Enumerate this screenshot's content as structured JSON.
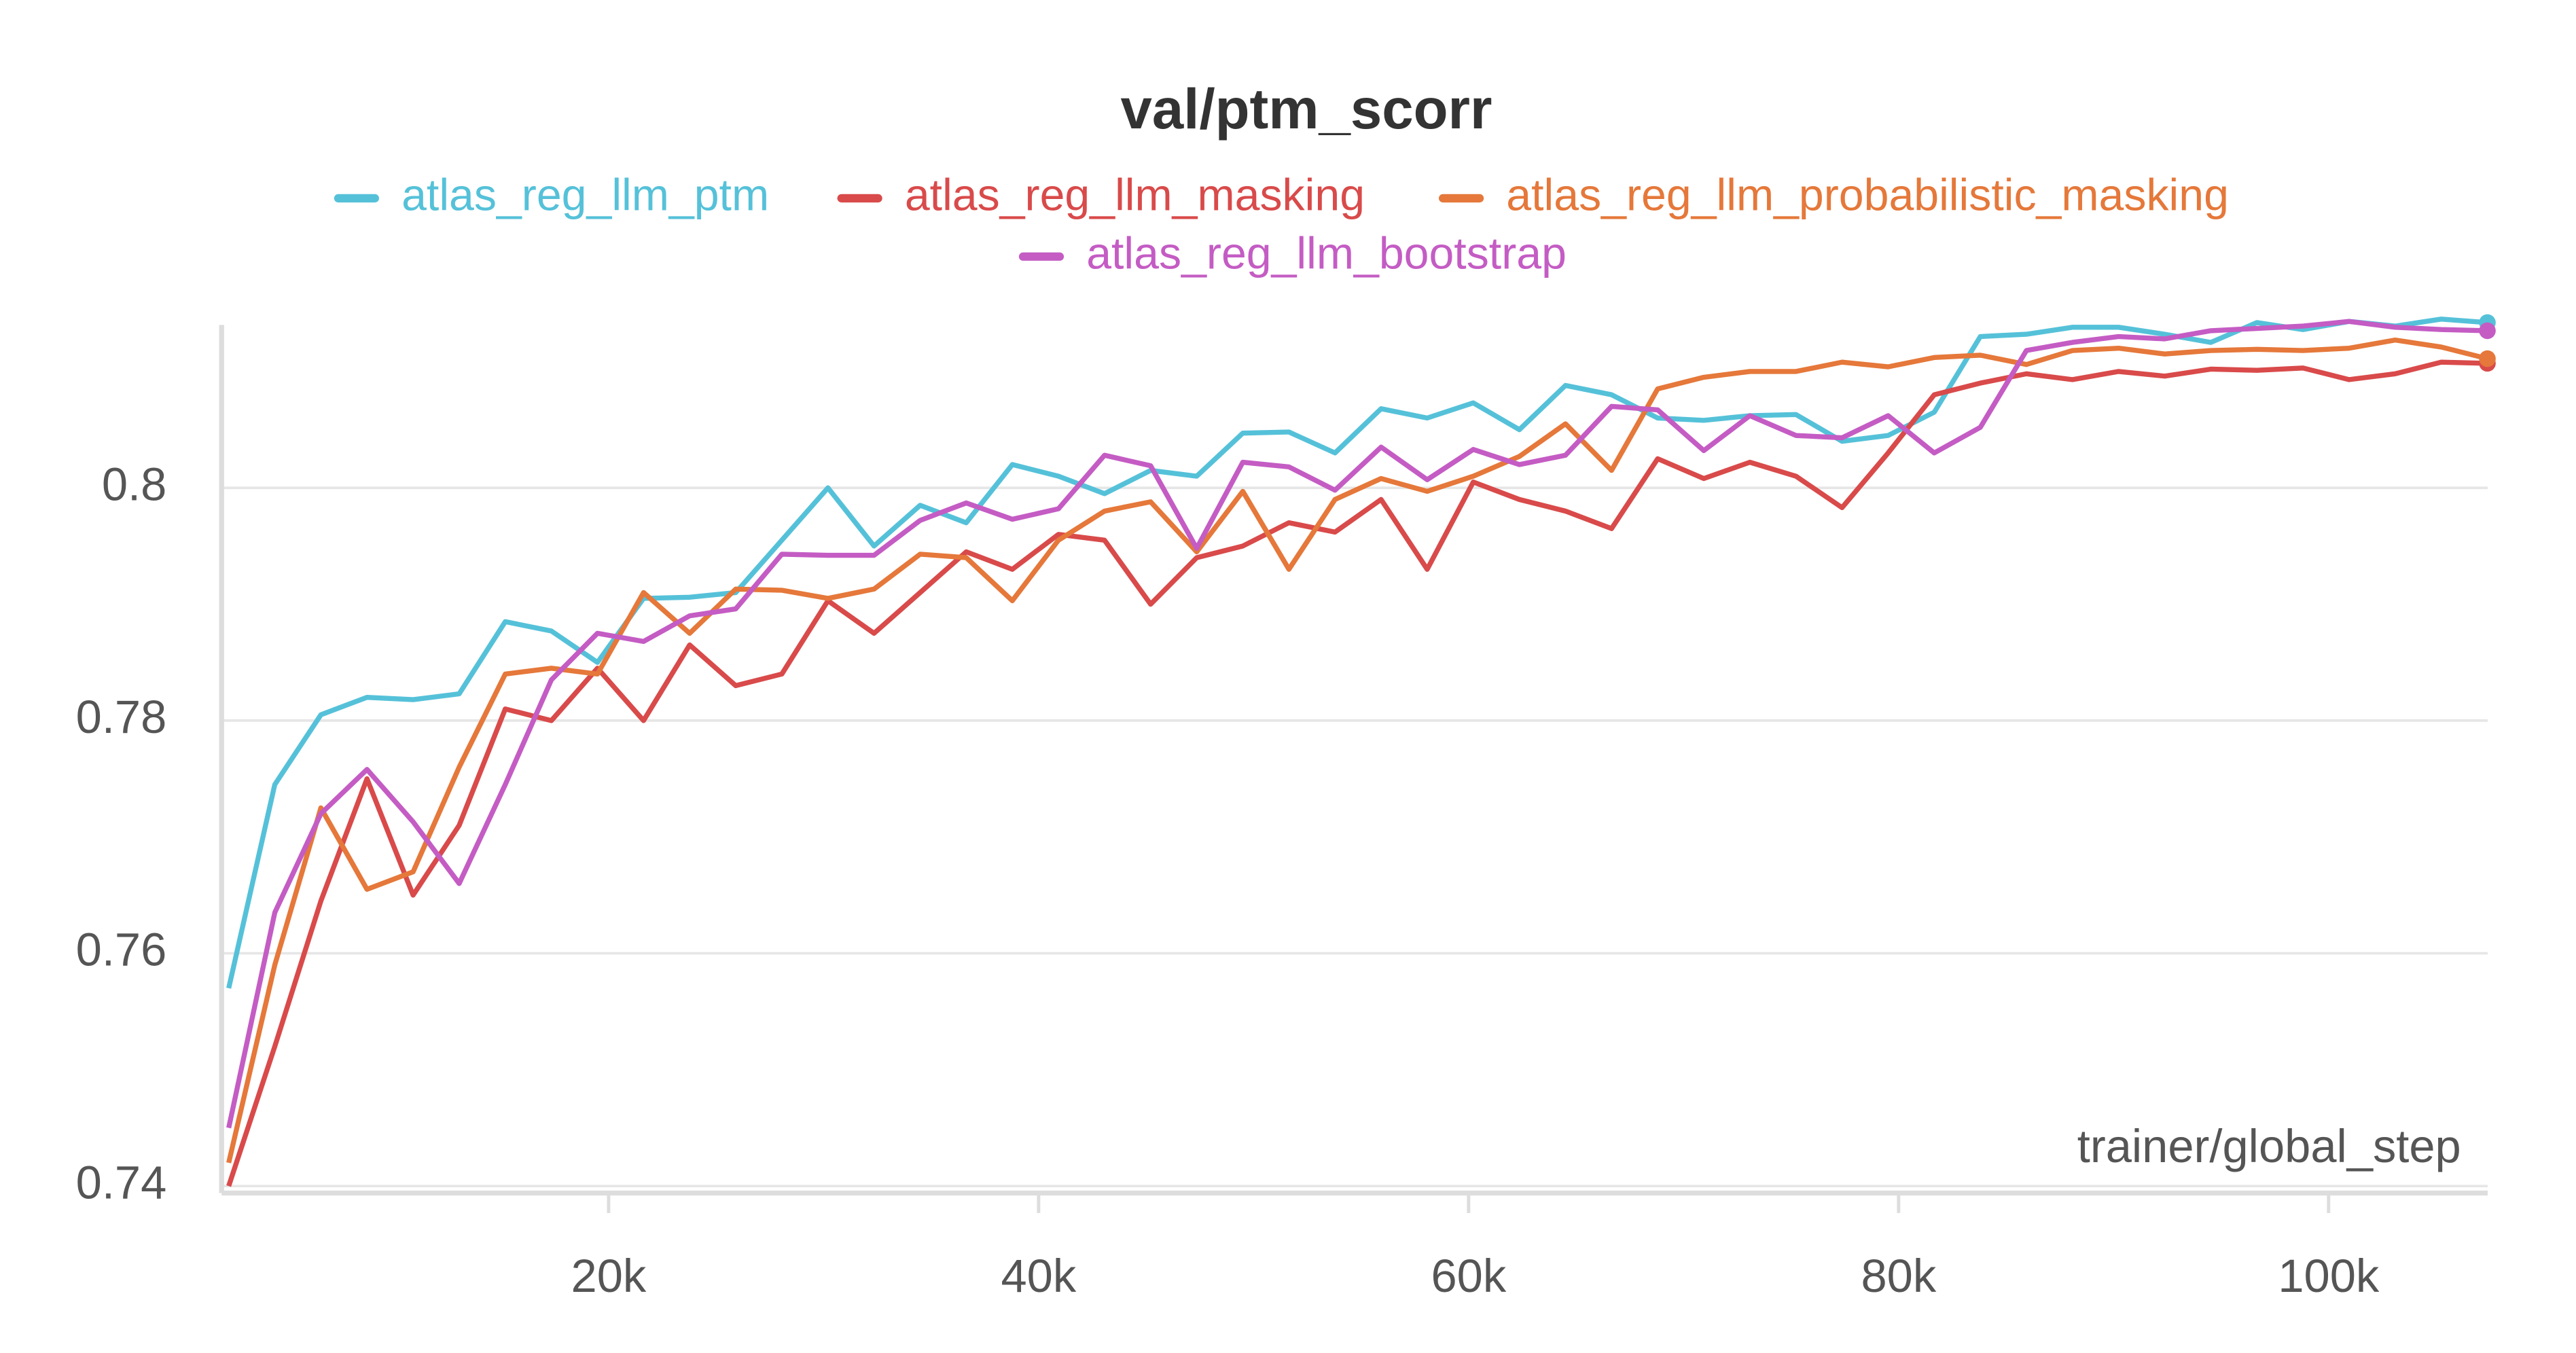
{
  "chart_data": {
    "type": "line",
    "title": "val/ptm_scorr",
    "x_label": "trainer/global_step",
    "x": [
      2330,
      4474,
      6618,
      8762,
      10906,
      13050,
      15194,
      17338,
      19482,
      21626,
      23770,
      25914,
      28058,
      30202,
      32346,
      34490,
      36634,
      38778,
      40922,
      43066,
      45210,
      47354,
      49498,
      51642,
      53786,
      55930,
      58074,
      60218,
      62362,
      64506,
      66650,
      68794,
      70938,
      73082,
      75226,
      77370,
      79514,
      81658,
      83802,
      85946,
      88090,
      90234,
      92378,
      94522,
      96666,
      98810,
      100954,
      103098,
      105242,
      107386
    ],
    "series": [
      {
        "name": "atlas_reg_llm_ptm",
        "color": "#55c1d9",
        "values": [
          0.757,
          0.7745,
          0.7805,
          0.782,
          0.7818,
          0.7823,
          0.7885,
          0.7877,
          0.785,
          0.7905,
          0.7906,
          0.791,
          0.7955,
          0.8,
          0.795,
          0.7985,
          0.797,
          0.802,
          0.801,
          0.7995,
          0.8015,
          0.801,
          0.8047,
          0.8048,
          0.803,
          0.8068,
          0.806,
          0.8073,
          0.805,
          0.8088,
          0.808,
          0.806,
          0.8058,
          0.8062,
          0.8063,
          0.804,
          0.8045,
          0.8065,
          0.813,
          0.8132,
          0.8138,
          0.8138,
          0.8132,
          0.8125,
          0.8142,
          0.8136,
          0.8143,
          0.8139,
          0.8145,
          0.8142
        ]
      },
      {
        "name": "atlas_reg_llm_masking",
        "color": "#d94a4a",
        "values": [
          0.74,
          0.752,
          0.7645,
          0.775,
          0.765,
          0.771,
          0.781,
          0.78,
          0.7845,
          0.78,
          0.7865,
          0.783,
          0.784,
          0.7903,
          0.7875,
          0.791,
          0.7945,
          0.793,
          0.796,
          0.7955,
          0.79,
          0.794,
          0.795,
          0.797,
          0.7962,
          0.799,
          0.793,
          0.8005,
          0.799,
          0.798,
          0.7965,
          0.8025,
          0.8008,
          0.8022,
          0.801,
          0.7983,
          0.803,
          0.808,
          0.809,
          0.8098,
          0.8093,
          0.81,
          0.8096,
          0.8102,
          0.8101,
          0.8103,
          0.8093,
          0.8098,
          0.8108,
          0.8107
        ]
      },
      {
        "name": "atlas_reg_llm_probabilistic_masking",
        "color": "#e5783a",
        "values": [
          0.742,
          0.759,
          0.7725,
          0.7655,
          0.767,
          0.776,
          0.784,
          0.7845,
          0.784,
          0.791,
          0.7875,
          0.7913,
          0.7912,
          0.7905,
          0.7913,
          0.7943,
          0.794,
          0.7903,
          0.7955,
          0.798,
          0.7988,
          0.7945,
          0.7997,
          0.793,
          0.799,
          0.8008,
          0.7997,
          0.801,
          0.8027,
          0.8055,
          0.8015,
          0.8085,
          0.8095,
          0.81,
          0.81,
          0.8108,
          0.8104,
          0.8112,
          0.8114,
          0.8106,
          0.8118,
          0.812,
          0.8115,
          0.8118,
          0.8119,
          0.8118,
          0.812,
          0.8127,
          0.8121,
          0.8111
        ]
      },
      {
        "name": "atlas_reg_llm_bootstrap",
        "color": "#c45cc4",
        "values": [
          0.745,
          0.7635,
          0.772,
          0.7758,
          0.7713,
          0.766,
          0.7745,
          0.7835,
          0.7875,
          0.7868,
          0.789,
          0.7896,
          0.7943,
          0.7942,
          0.7942,
          0.7972,
          0.7987,
          0.7973,
          0.7982,
          0.8028,
          0.8019,
          0.7948,
          0.8022,
          0.8018,
          0.7998,
          0.8035,
          0.8007,
          0.8033,
          0.802,
          0.8028,
          0.807,
          0.8067,
          0.8032,
          0.8062,
          0.8045,
          0.8043,
          0.8062,
          0.803,
          0.8052,
          0.8118,
          0.8125,
          0.813,
          0.8128,
          0.8135,
          0.8137,
          0.8139,
          0.8143,
          0.8138,
          0.8136,
          0.8135
        ]
      }
    ],
    "xlim": [
      2000,
      107400
    ],
    "ylim": [
      0.7394,
      0.814
    ],
    "xticks": [
      {
        "value": 20000,
        "label": "20k"
      },
      {
        "value": 40000,
        "label": "40k"
      },
      {
        "value": 60000,
        "label": "60k"
      },
      {
        "value": 80000,
        "label": "80k"
      },
      {
        "value": 100000,
        "label": "100k"
      }
    ],
    "yticks": [
      0.74,
      0.76,
      0.78,
      0.8
    ],
    "grid": true
  }
}
